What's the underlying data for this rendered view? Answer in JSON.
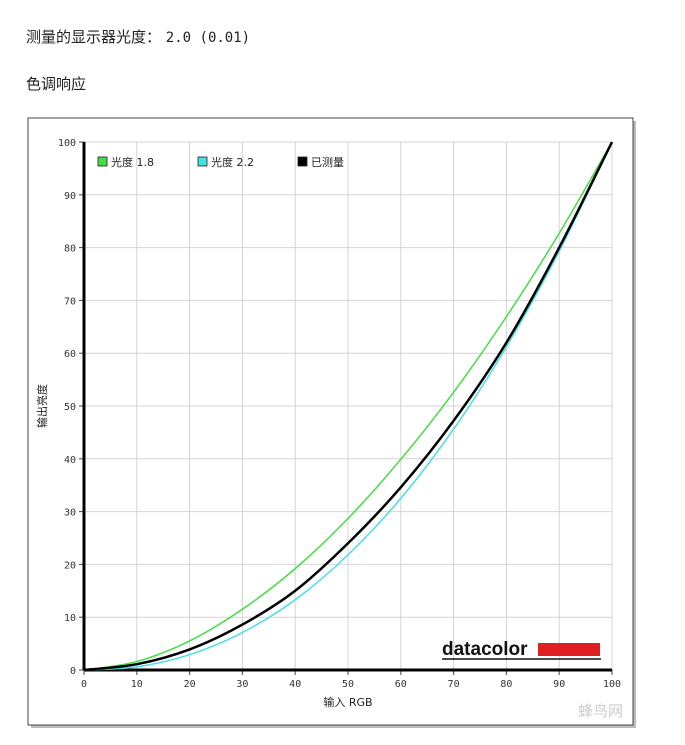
{
  "header": {
    "measured_gamma_label": "测量的显示器光度：",
    "measured_gamma_value": "2.0 (0.01)",
    "section_title": "色调响应"
  },
  "chart_data": {
    "type": "line",
    "title": "",
    "xlabel": "输入 RGB",
    "ylabel": "输出亮度",
    "xlim": [
      0,
      100
    ],
    "ylim": [
      0,
      100
    ],
    "xticks": [
      0,
      10,
      20,
      30,
      40,
      50,
      60,
      70,
      80,
      90,
      100
    ],
    "yticks": [
      0,
      10,
      20,
      30,
      40,
      50,
      60,
      70,
      80,
      90,
      100
    ],
    "grid": true,
    "legend_position": "top-left",
    "series": [
      {
        "name": "光度 1.8",
        "color": "#44dd44",
        "x": [
          0,
          10,
          20,
          30,
          40,
          50,
          60,
          70,
          80,
          90,
          100
        ],
        "y": [
          0,
          1.6,
          5.5,
          11.5,
          19.2,
          28.7,
          39.9,
          52.6,
          66.9,
          82.7,
          100
        ]
      },
      {
        "name": "光度 2.2",
        "color": "#44e0e8",
        "x": [
          0,
          10,
          20,
          30,
          40,
          50,
          60,
          70,
          80,
          90,
          100
        ],
        "y": [
          0,
          0.6,
          2.9,
          7.1,
          13.3,
          21.8,
          32.5,
          45.6,
          61.2,
          79.3,
          100
        ]
      },
      {
        "name": "已测量",
        "color": "#000000",
        "x": [
          0,
          10,
          20,
          30,
          40,
          50,
          60,
          70,
          80,
          90,
          100
        ],
        "y": [
          0,
          1.1,
          3.9,
          8.6,
          15.0,
          24.0,
          34.6,
          47.2,
          62.0,
          80.0,
          100
        ]
      }
    ]
  },
  "logo": {
    "text": "datacolor",
    "accent": "#e02020"
  },
  "watermark": {
    "text": "蜂鸟网"
  }
}
